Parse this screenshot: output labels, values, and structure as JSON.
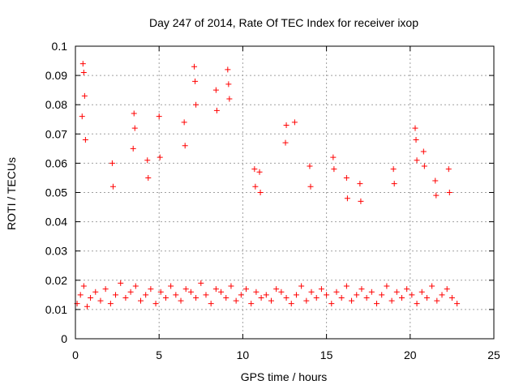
{
  "chart_data": {
    "type": "scatter",
    "title": "Day 247 of 2014, Rate Of TEC Index for receiver ixop",
    "xlabel": "GPS time / hours",
    "ylabel": "ROTI / TECUs",
    "xlim": [
      0,
      25
    ],
    "ylim": [
      0,
      0.1
    ],
    "x_ticks": [
      0,
      5,
      10,
      15,
      20,
      25
    ],
    "y_ticks": [
      0,
      0.01,
      0.02,
      0.03,
      0.04,
      0.05,
      0.06,
      0.07,
      0.08,
      0.09,
      0.1
    ],
    "x_tick_labels": [
      "0",
      "5",
      "10",
      "15",
      "20",
      "25"
    ],
    "y_tick_labels": [
      "0",
      "0.01",
      "0.02",
      "0.03",
      "0.04",
      "0.05",
      "0.06",
      "0.07",
      "0.08",
      "0.09",
      "0.1"
    ],
    "grid": true,
    "marker": "+",
    "color": "#ff0000",
    "series": [
      {
        "x": [
          0.1,
          0.3,
          0.5,
          0.7,
          0.9,
          1.2,
          1.5,
          1.8,
          2.1,
          2.4,
          2.7,
          3.0,
          3.3,
          3.6,
          3.9,
          4.2,
          4.5,
          4.8,
          5.1,
          5.4,
          5.7,
          6.0,
          6.3,
          6.6,
          6.9,
          7.2,
          7.5,
          7.8,
          8.1,
          8.4,
          8.7,
          9.0,
          9.3,
          9.6,
          9.9,
          10.2,
          10.5,
          10.8,
          11.1,
          11.4,
          11.7,
          12.0,
          12.3,
          12.6,
          12.9,
          13.2,
          13.5,
          13.8,
          14.1,
          14.4,
          14.7,
          15.0,
          15.3,
          15.6,
          15.9,
          16.2,
          16.5,
          16.8,
          17.1,
          17.4,
          17.7,
          18.0,
          18.3,
          18.6,
          18.9,
          19.2,
          19.5,
          19.8,
          20.1,
          20.4,
          20.7,
          21.0,
          21.3,
          21.6,
          21.9,
          22.2,
          22.5,
          22.8,
          0.45,
          0.5,
          0.55,
          0.4,
          0.6,
          3.5,
          3.55,
          3.45,
          7.1,
          7.15,
          7.2,
          8.4,
          8.45,
          9.1,
          9.15,
          9.2,
          12.6,
          12.55,
          13.1,
          15.4,
          15.45,
          20.3,
          20.35,
          20.4,
          20.8,
          20.85,
          19.0,
          19.05,
          22.3,
          22.35,
          2.2,
          2.25,
          4.3,
          4.35,
          5.0,
          5.05,
          6.5,
          6.55,
          10.7,
          10.75,
          11.0,
          11.05,
          14.0,
          14.05,
          16.2,
          16.25,
          17.0,
          17.05,
          21.5,
          21.55
        ],
        "y": [
          0.012,
          0.015,
          0.018,
          0.011,
          0.014,
          0.016,
          0.013,
          0.017,
          0.012,
          0.015,
          0.019,
          0.014,
          0.016,
          0.018,
          0.013,
          0.015,
          0.017,
          0.012,
          0.016,
          0.014,
          0.018,
          0.015,
          0.013,
          0.017,
          0.016,
          0.014,
          0.019,
          0.015,
          0.012,
          0.017,
          0.016,
          0.014,
          0.018,
          0.013,
          0.015,
          0.017,
          0.012,
          0.016,
          0.014,
          0.015,
          0.013,
          0.017,
          0.016,
          0.014,
          0.012,
          0.015,
          0.018,
          0.013,
          0.016,
          0.014,
          0.017,
          0.015,
          0.012,
          0.016,
          0.014,
          0.018,
          0.013,
          0.015,
          0.017,
          0.014,
          0.016,
          0.012,
          0.015,
          0.018,
          0.013,
          0.016,
          0.014,
          0.017,
          0.015,
          0.012,
          0.016,
          0.014,
          0.018,
          0.013,
          0.015,
          0.017,
          0.014,
          0.012,
          0.094,
          0.091,
          0.083,
          0.076,
          0.068,
          0.077,
          0.072,
          0.065,
          0.093,
          0.088,
          0.08,
          0.085,
          0.078,
          0.092,
          0.087,
          0.082,
          0.073,
          0.067,
          0.074,
          0.062,
          0.058,
          0.072,
          0.068,
          0.061,
          0.064,
          0.059,
          0.058,
          0.053,
          0.058,
          0.05,
          0.06,
          0.052,
          0.061,
          0.055,
          0.076,
          0.062,
          0.074,
          0.066,
          0.058,
          0.052,
          0.057,
          0.05,
          0.059,
          0.052,
          0.055,
          0.048,
          0.053,
          0.047,
          0.054,
          0.049
        ]
      }
    ]
  }
}
